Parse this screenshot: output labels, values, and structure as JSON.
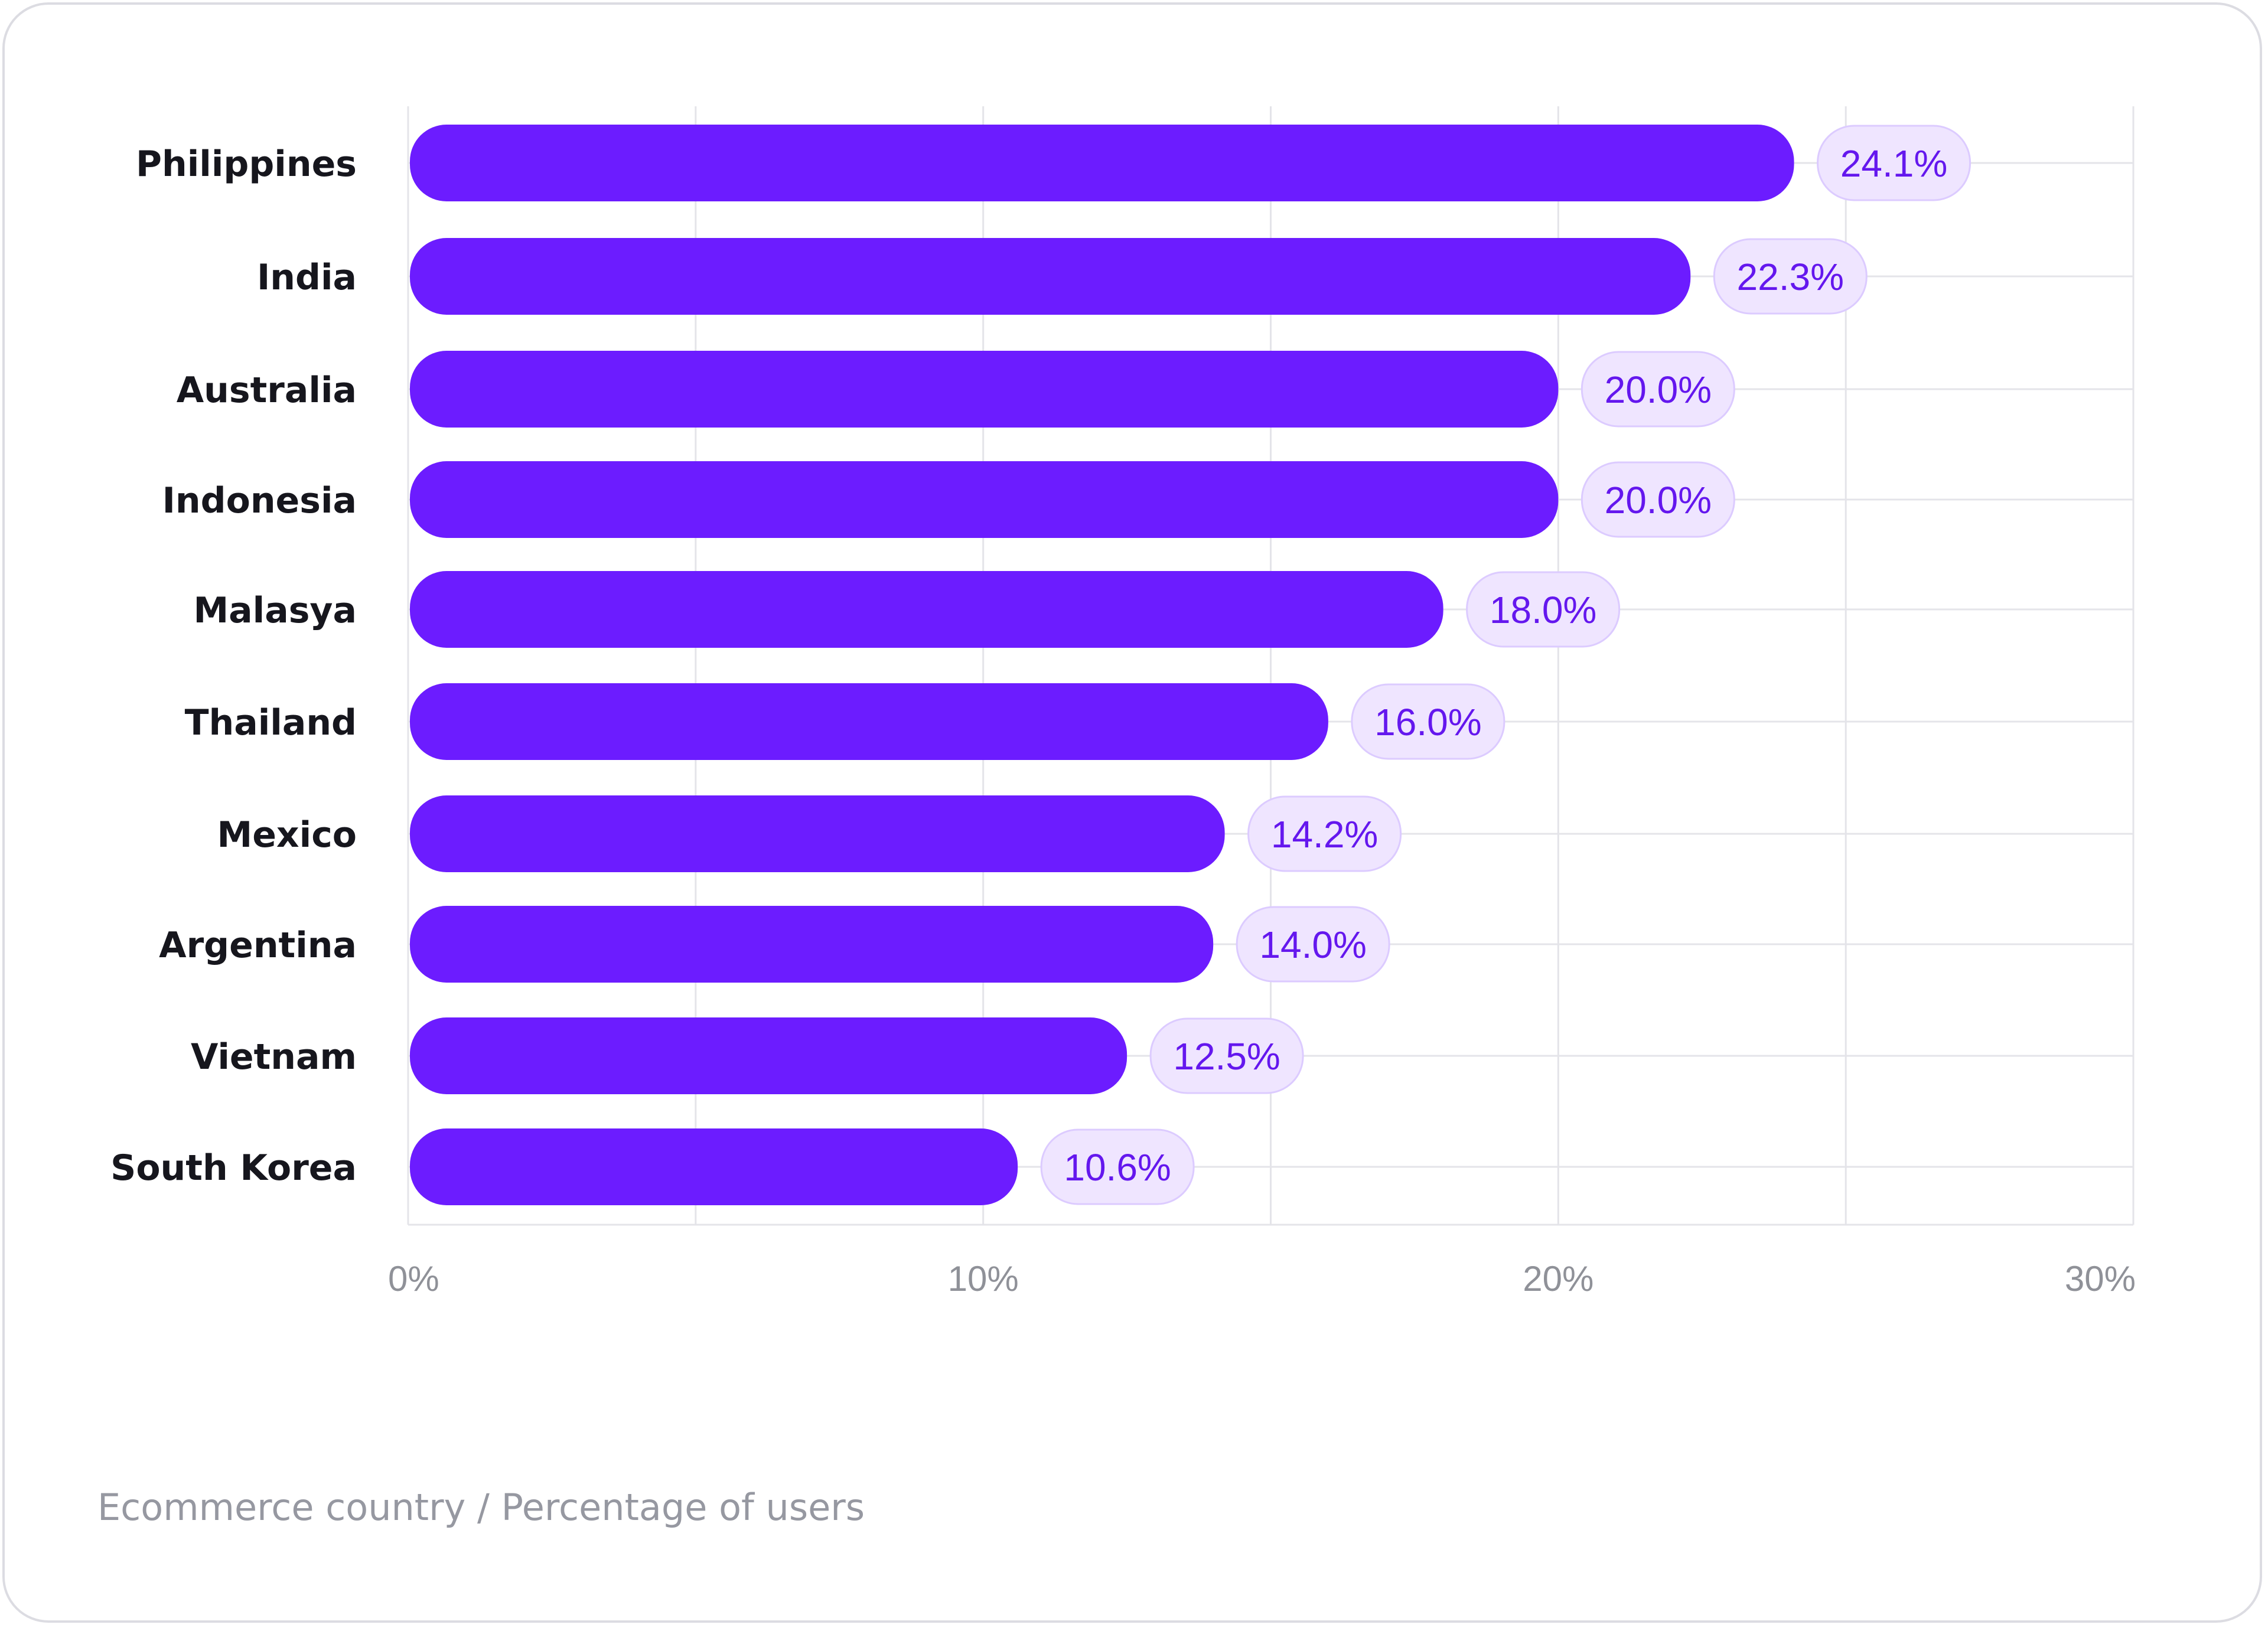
{
  "caption": "Ecommerce country / Percentage of users",
  "colors": {
    "bar": "#6c1cff",
    "pill_bg": "#efe5ff",
    "pill_border": "#dccbff",
    "pill_text": "#6417ee",
    "grid": "#e4e4e9"
  },
  "chart_data": {
    "type": "bar",
    "orientation": "horizontal",
    "categories": [
      "Philippines",
      "India",
      "Australia",
      "Indonesia",
      "Malasya",
      "Thailand",
      "Mexico",
      "Argentina",
      "Vietnam",
      "South Korea"
    ],
    "values": [
      24.1,
      22.3,
      20.0,
      20.0,
      18.0,
      16.0,
      14.2,
      14.0,
      12.5,
      10.6
    ],
    "value_labels": [
      "24.1%",
      "22.3%",
      "20.0%",
      "20.0%",
      "18.0%",
      "16.0%",
      "14.2%",
      "14.0%",
      "12.5%",
      "10.6%"
    ],
    "x_ticks": [
      0,
      10,
      20,
      30
    ],
    "x_tick_labels": [
      "0%",
      "10%",
      "20%",
      "30%"
    ],
    "xlim": [
      0,
      30
    ],
    "grid": true
  }
}
